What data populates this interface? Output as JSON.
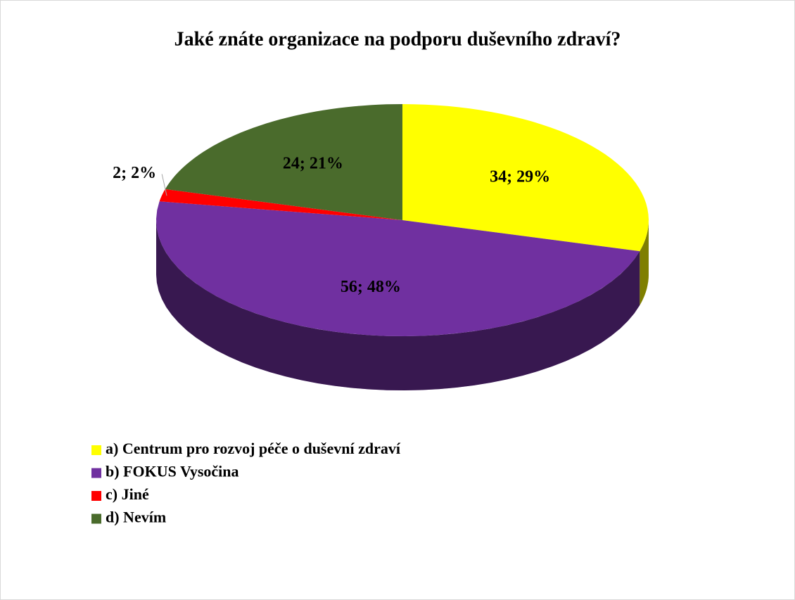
{
  "chart_data": {
    "type": "pie",
    "title": "Jaké znáte organizace na podporu duševního zdraví?",
    "categories": [
      "a) Centrum pro rozvoj péče o duševní zdraví",
      "b) FOKUS Vysočina",
      "c) Jiné",
      "d) Nevím"
    ],
    "values": [
      34,
      56,
      2,
      24
    ],
    "value_labels": [
      "34; 29%",
      "56; 48%",
      "2; 2%",
      "24; 21%"
    ],
    "colors": [
      "#ffff00",
      "#7030a0",
      "#ff0000",
      "#4a6b2c"
    ],
    "legend": "bottom-left"
  }
}
